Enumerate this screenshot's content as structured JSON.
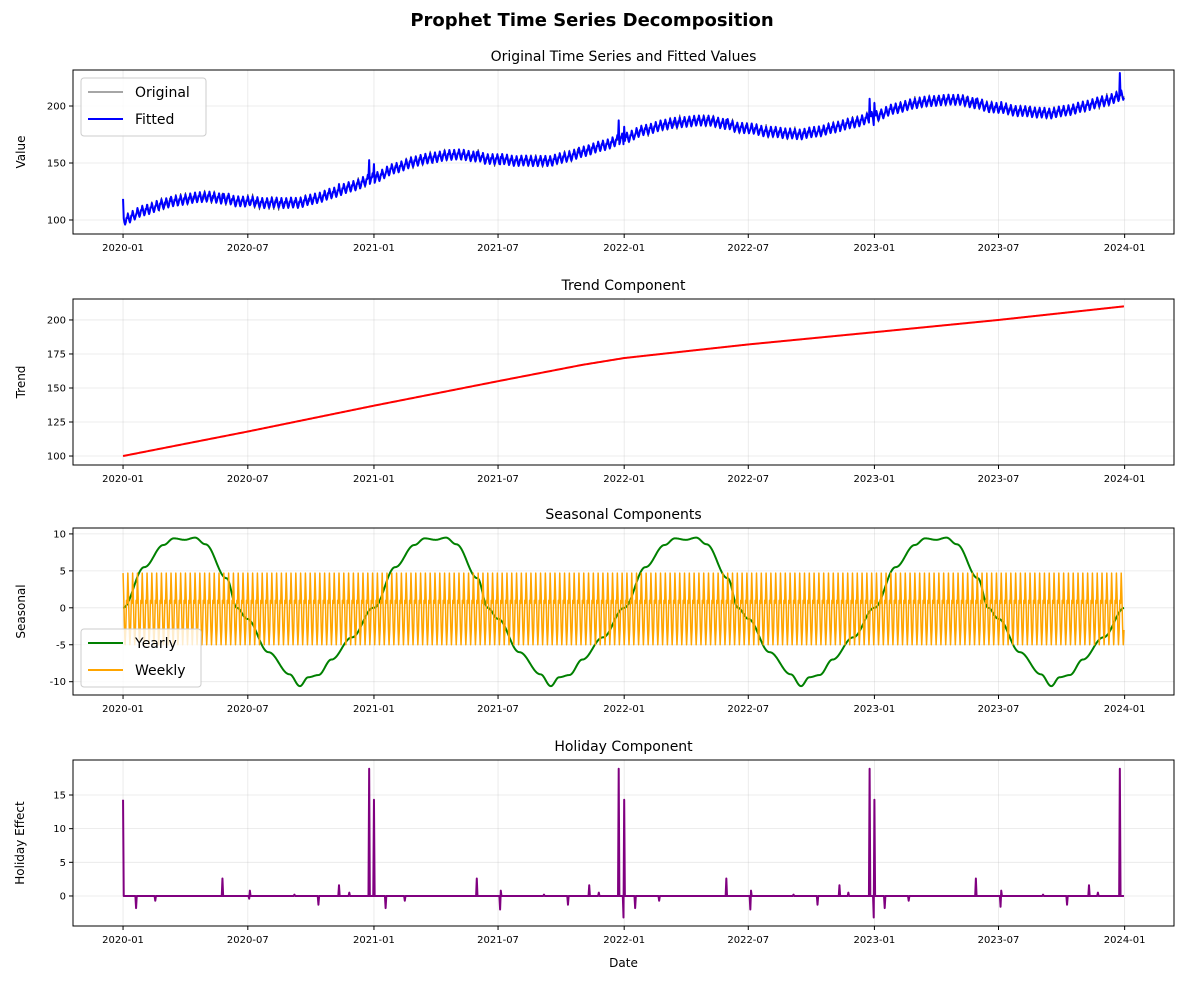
{
  "figure_title": "Prophet Time Series Decomposition",
  "chart_data": [
    {
      "type": "line",
      "title": "Original Time Series and Fitted Values",
      "xlabel": "",
      "ylabel": "Value",
      "ylim": [
        87.7,
        231.6
      ],
      "yticks": [
        100,
        150,
        200
      ],
      "grid": true,
      "legend": "upper-left",
      "series": [
        {
          "name": "Original",
          "color": "#000000",
          "derived": "fitted plus observation noise"
        },
        {
          "name": "Fitted",
          "color": "#0000ff",
          "derived": "trend + yearly + weekly + holidays"
        }
      ]
    },
    {
      "type": "line",
      "title": "Trend Component",
      "xlabel": "",
      "ylabel": "Trend",
      "ylim": [
        93.4,
        215.4
      ],
      "yticks": [
        100,
        125,
        150,
        175,
        200
      ],
      "grid": true,
      "series": [
        {
          "color": "#ff0000",
          "points": [
            [
              "2020-01-01",
              100
            ],
            [
              "2020-07-01",
              118
            ],
            [
              "2021-01-01",
              137
            ],
            [
              "2021-07-01",
              155
            ],
            [
              "2021-11-01",
              167
            ],
            [
              "2022-01-01",
              172
            ],
            [
              "2022-04-01",
              177
            ],
            [
              "2022-07-01",
              182
            ],
            [
              "2023-01-01",
              191
            ],
            [
              "2023-07-01",
              200
            ],
            [
              "2023-12-31",
              210
            ]
          ]
        }
      ]
    },
    {
      "type": "line",
      "title": "Seasonal Components",
      "xlabel": "",
      "ylabel": "Seasonal",
      "ylim": [
        -11.8,
        10.8
      ],
      "yticks": [
        -10,
        -5,
        0,
        5,
        10
      ],
      "grid": true,
      "legend": "lower-left",
      "series": [
        {
          "name": "Yearly",
          "color": "#008000",
          "day_of_year_points": [
            [
              0,
              0
            ],
            [
              31,
              5.5
            ],
            [
              59,
              8.5
            ],
            [
              74,
              9.4
            ],
            [
              90,
              9.2
            ],
            [
              105,
              9.5
            ],
            [
              120,
              8.6
            ],
            [
              151,
              4
            ],
            [
              166,
              0
            ],
            [
              181,
              -1.5
            ],
            [
              212,
              -6
            ],
            [
              243,
              -9
            ],
            [
              258,
              -10.6
            ],
            [
              270,
              -9.4
            ],
            [
              285,
              -9.1
            ],
            [
              304,
              -7
            ],
            [
              334,
              -4
            ],
            [
              365,
              0
            ]
          ]
        },
        {
          "name": "Weekly",
          "color": "#ffa500",
          "weekday_values": [
            4.7,
            1.5,
            -2.5,
            -5.0,
            -3.0,
            1.0,
            0.6
          ]
        }
      ]
    },
    {
      "type": "line",
      "title": "Holiday Component",
      "xlabel": "Date",
      "ylabel": "Holiday Effect",
      "ylim": [
        -4.46,
        20.2
      ],
      "yticks": [
        0,
        5,
        10,
        15
      ],
      "grid": true,
      "series": [
        {
          "color": "#800080",
          "baseline": 0,
          "spikes": [
            [
              "2020-01-01",
              14.3
            ],
            [
              "2020-01-20",
              -1.8
            ],
            [
              "2020-02-17",
              -0.7
            ],
            [
              "2020-05-25",
              2.6
            ],
            [
              "2020-07-03",
              -0.4
            ],
            [
              "2020-07-04",
              0.8
            ],
            [
              "2020-09-07",
              0.2
            ],
            [
              "2020-10-12",
              -1.3
            ],
            [
              "2020-11-11",
              1.6
            ],
            [
              "2020-11-26",
              0.5
            ],
            [
              "2020-12-25",
              18.9
            ],
            [
              "2021-01-01",
              14.3
            ],
            [
              "2021-01-18",
              -1.8
            ],
            [
              "2021-02-15",
              -0.7
            ],
            [
              "2021-05-31",
              2.6
            ],
            [
              "2021-07-04",
              -2.0
            ],
            [
              "2021-07-05",
              0.8
            ],
            [
              "2021-09-06",
              0.2
            ],
            [
              "2021-10-11",
              -1.3
            ],
            [
              "2021-11-11",
              1.6
            ],
            [
              "2021-11-25",
              0.5
            ],
            [
              "2021-12-24",
              18.9
            ],
            [
              "2021-12-31",
              -3.2
            ],
            [
              "2022-01-01",
              14.3
            ],
            [
              "2022-01-17",
              -1.8
            ],
            [
              "2022-02-21",
              -0.7
            ],
            [
              "2022-05-30",
              2.6
            ],
            [
              "2022-07-04",
              -2.0
            ],
            [
              "2022-07-05",
              0.8
            ],
            [
              "2022-09-05",
              0.2
            ],
            [
              "2022-10-10",
              -1.3
            ],
            [
              "2022-11-11",
              1.6
            ],
            [
              "2022-11-24",
              0.5
            ],
            [
              "2022-12-25",
              18.9
            ],
            [
              "2022-12-31",
              -3.2
            ],
            [
              "2023-01-01",
              14.3
            ],
            [
              "2023-01-16",
              -1.8
            ],
            [
              "2023-02-20",
              -0.7
            ],
            [
              "2023-05-29",
              2.6
            ],
            [
              "2023-07-04",
              -1.6
            ],
            [
              "2023-07-05",
              0.8
            ],
            [
              "2023-09-04",
              0.2
            ],
            [
              "2023-10-09",
              -1.3
            ],
            [
              "2023-11-10",
              1.6
            ],
            [
              "2023-11-23",
              0.5
            ],
            [
              "2023-12-25",
              18.9
            ]
          ]
        }
      ]
    }
  ],
  "x_axis": {
    "start": "2020-01-01",
    "end": "2023-12-31",
    "xlim": [
      "2019-10-20",
      "2024-03-13"
    ],
    "ticks": [
      "2020-01",
      "2020-07",
      "2021-01",
      "2021-07",
      "2022-01",
      "2022-07",
      "2023-01",
      "2023-07",
      "2024-01"
    ]
  }
}
